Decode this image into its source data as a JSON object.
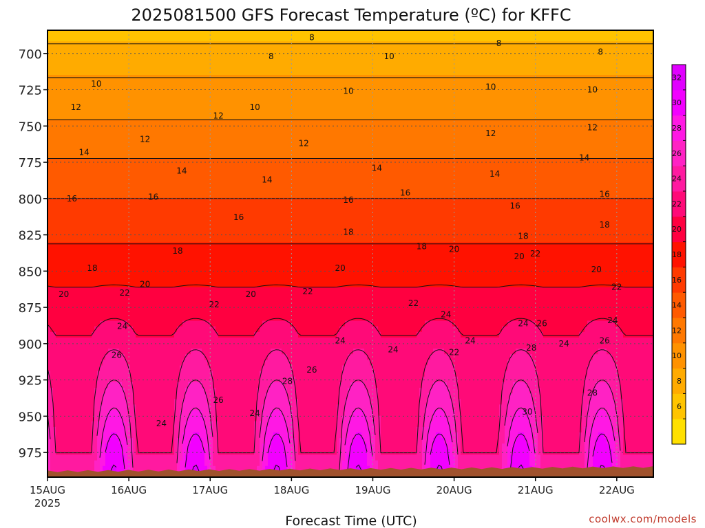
{
  "chart_data": {
    "type": "heatmap",
    "title": "2025081500 GFS Forecast Temperature (ºC) for KFFC",
    "xlabel": "Forecast Time (UTC)",
    "x_ticks": [
      {
        "label": "15AUG",
        "sub": "2025",
        "day": 0
      },
      {
        "label": "16AUG",
        "day": 1
      },
      {
        "label": "17AUG",
        "day": 2
      },
      {
        "label": "18AUG",
        "day": 3
      },
      {
        "label": "19AUG",
        "day": 4
      },
      {
        "label": "20AUG",
        "day": 5
      },
      {
        "label": "21AUG",
        "day": 6
      },
      {
        "label": "22AUG",
        "day": 7
      }
    ],
    "xlim_days": [
      0,
      7.45
    ],
    "y_ticks": [
      700,
      725,
      750,
      775,
      800,
      825,
      850,
      875,
      900,
      925,
      950,
      975
    ],
    "ylim_hpa": [
      684,
      992
    ],
    "grid": "dotted",
    "colorbar": {
      "labels": [
        6,
        8,
        10,
        12,
        14,
        16,
        18,
        20,
        22,
        24,
        26,
        28,
        30,
        32
      ],
      "colors": [
        "#ffe000",
        "#ffc400",
        "#ffab00",
        "#ff9200",
        "#ff7800",
        "#ff5a00",
        "#ff3a00",
        "#ff1200",
        "#ff0040",
        "#ff0a78",
        "#ff1aa0",
        "#ff22c4",
        "#ff18e4",
        "#f200ff",
        "#e000ff"
      ]
    },
    "profile_day": [
      {
        "hpa": 690,
        "t": 7.6
      },
      {
        "hpa": 700,
        "t": 8.8
      },
      {
        "hpa": 725,
        "t": 10.6
      },
      {
        "hpa": 750,
        "t": 12.3
      },
      {
        "hpa": 775,
        "t": 14.2
      },
      {
        "hpa": 800,
        "t": 16.0
      },
      {
        "hpa": 825,
        "t": 17.6
      },
      {
        "hpa": 850,
        "t": 19.2
      },
      {
        "hpa": 875,
        "t": 21.3
      },
      {
        "hpa": 900,
        "t": 23.6
      },
      {
        "hpa": 925,
        "t": 26.0
      },
      {
        "hpa": 950,
        "t": 28.6
      },
      {
        "hpa": 975,
        "t": 31.5
      },
      {
        "hpa": 992,
        "t": 32.5
      }
    ],
    "profile_night": [
      {
        "hpa": 690,
        "t": 7.6
      },
      {
        "hpa": 700,
        "t": 8.8
      },
      {
        "hpa": 725,
        "t": 10.6
      },
      {
        "hpa": 750,
        "t": 12.3
      },
      {
        "hpa": 775,
        "t": 14.2
      },
      {
        "hpa": 800,
        "t": 16.0
      },
      {
        "hpa": 825,
        "t": 17.6
      },
      {
        "hpa": 850,
        "t": 19.2
      },
      {
        "hpa": 875,
        "t": 21.0
      },
      {
        "hpa": 900,
        "t": 22.3
      },
      {
        "hpa": 925,
        "t": 23.0
      },
      {
        "hpa": 950,
        "t": 23.6
      },
      {
        "hpa": 975,
        "t": 24.0
      },
      {
        "hpa": 992,
        "t": 24.1
      }
    ],
    "contour_labels": [
      {
        "text": "8",
        "day": 3.25,
        "hpa": 689
      },
      {
        "text": "8",
        "day": 2.75,
        "hpa": 702
      },
      {
        "text": "8",
        "day": 5.55,
        "hpa": 693
      },
      {
        "text": "8",
        "day": 6.8,
        "hpa": 699
      },
      {
        "text": "10",
        "day": 0.6,
        "hpa": 721
      },
      {
        "text": "10",
        "day": 2.55,
        "hpa": 737
      },
      {
        "text": "10",
        "day": 3.7,
        "hpa": 726
      },
      {
        "text": "10",
        "day": 4.2,
        "hpa": 702
      },
      {
        "text": "10",
        "day": 5.45,
        "hpa": 723
      },
      {
        "text": "10",
        "day": 6.7,
        "hpa": 725
      },
      {
        "text": "12",
        "day": 0.35,
        "hpa": 737
      },
      {
        "text": "12",
        "day": 1.2,
        "hpa": 759
      },
      {
        "text": "12",
        "day": 2.1,
        "hpa": 743
      },
      {
        "text": "12",
        "day": 3.15,
        "hpa": 762
      },
      {
        "text": "12",
        "day": 5.45,
        "hpa": 755
      },
      {
        "text": "12",
        "day": 6.7,
        "hpa": 751
      },
      {
        "text": "14",
        "day": 0.45,
        "hpa": 768
      },
      {
        "text": "14",
        "day": 1.65,
        "hpa": 781
      },
      {
        "text": "14",
        "day": 2.7,
        "hpa": 787
      },
      {
        "text": "14",
        "day": 4.05,
        "hpa": 779
      },
      {
        "text": "14",
        "day": 5.5,
        "hpa": 783
      },
      {
        "text": "14",
        "day": 6.6,
        "hpa": 772
      },
      {
        "text": "16",
        "day": 0.3,
        "hpa": 800
      },
      {
        "text": "16",
        "day": 1.3,
        "hpa": 799
      },
      {
        "text": "16",
        "day": 2.35,
        "hpa": 813
      },
      {
        "text": "16",
        "day": 3.7,
        "hpa": 801
      },
      {
        "text": "16",
        "day": 4.4,
        "hpa": 796
      },
      {
        "text": "16",
        "day": 5.75,
        "hpa": 805
      },
      {
        "text": "16",
        "day": 6.85,
        "hpa": 797
      },
      {
        "text": "18",
        "day": 0.55,
        "hpa": 848
      },
      {
        "text": "18",
        "day": 1.6,
        "hpa": 836
      },
      {
        "text": "18",
        "day": 3.7,
        "hpa": 823
      },
      {
        "text": "18",
        "day": 4.6,
        "hpa": 833
      },
      {
        "text": "18",
        "day": 5.85,
        "hpa": 826
      },
      {
        "text": "18",
        "day": 6.85,
        "hpa": 818
      },
      {
        "text": "20",
        "day": 0.2,
        "hpa": 866
      },
      {
        "text": "20",
        "day": 1.2,
        "hpa": 859
      },
      {
        "text": "20",
        "day": 2.5,
        "hpa": 866
      },
      {
        "text": "20",
        "day": 3.6,
        "hpa": 848
      },
      {
        "text": "20",
        "day": 5.0,
        "hpa": 835
      },
      {
        "text": "20",
        "day": 5.8,
        "hpa": 840
      },
      {
        "text": "20",
        "day": 6.75,
        "hpa": 849
      },
      {
        "text": "22",
        "day": 0.95,
        "hpa": 865
      },
      {
        "text": "22",
        "day": 2.05,
        "hpa": 873
      },
      {
        "text": "22",
        "day": 3.2,
        "hpa": 864
      },
      {
        "text": "22",
        "day": 4.5,
        "hpa": 872
      },
      {
        "text": "22",
        "day": 5.0,
        "hpa": 906
      },
      {
        "text": "22",
        "day": 6.0,
        "hpa": 838
      },
      {
        "text": "22",
        "day": 7.0,
        "hpa": 861
      },
      {
        "text": "24",
        "day": 0.92,
        "hpa": 888
      },
      {
        "text": "24",
        "day": 1.4,
        "hpa": 955
      },
      {
        "text": "24",
        "day": 2.55,
        "hpa": 948
      },
      {
        "text": "24",
        "day": 3.6,
        "hpa": 898
      },
      {
        "text": "24",
        "day": 4.25,
        "hpa": 904
      },
      {
        "text": "24",
        "day": 4.9,
        "hpa": 880
      },
      {
        "text": "24",
        "day": 5.2,
        "hpa": 898
      },
      {
        "text": "24",
        "day": 5.85,
        "hpa": 886
      },
      {
        "text": "24",
        "day": 6.35,
        "hpa": 900
      },
      {
        "text": "24",
        "day": 6.95,
        "hpa": 884
      },
      {
        "text": "26",
        "day": 0.85,
        "hpa": 908
      },
      {
        "text": "26",
        "day": 2.1,
        "hpa": 939
      },
      {
        "text": "26",
        "day": 3.25,
        "hpa": 918
      },
      {
        "text": "26",
        "day": 6.08,
        "hpa": 886
      },
      {
        "text": "26",
        "day": 6.85,
        "hpa": 898
      },
      {
        "text": "28",
        "day": 2.95,
        "hpa": 926
      },
      {
        "text": "28",
        "day": 5.95,
        "hpa": 903
      },
      {
        "text": "28",
        "day": 6.7,
        "hpa": 934
      },
      {
        "text": "30",
        "day": 5.9,
        "hpa": 947
      }
    ],
    "ground_color": "#a0522d",
    "credit": "coolwx.com/models"
  }
}
